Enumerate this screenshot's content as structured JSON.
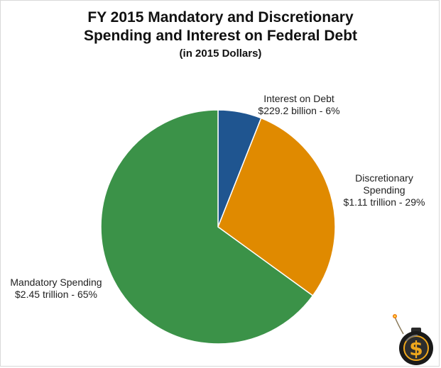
{
  "chart_data": {
    "type": "pie",
    "title": "FY 2015 Mandatory and Discretionary",
    "title_line2": "Spending and Interest on Federal Debt",
    "subtitle": "(in 2015 Dollars)",
    "slices": [
      {
        "label": "Interest on Debt",
        "value_text": "$229.2 billion - 6%",
        "value": 229.2,
        "percent": 6,
        "color": "#1f5590"
      },
      {
        "label": "Discretionary Spending",
        "label_line1": "Discretionary",
        "label_line2": "Spending",
        "value_text": "$1.11 trillion - 29%",
        "value": 1110,
        "percent": 29,
        "color": "#e08a00"
      },
      {
        "label": "Mandatory Spending",
        "value_text": "$2.45 trillion - 65%",
        "value": 2450,
        "percent": 65,
        "color": "#3b9248"
      }
    ],
    "start_angle_deg": 0,
    "direction": "clockwise",
    "legend": "none"
  },
  "logo": {
    "icon": "dollar-bomb-icon",
    "colors": {
      "body": "#1a1a1a",
      "dollar": "#f0a81c",
      "spark": "#f07a10"
    }
  }
}
